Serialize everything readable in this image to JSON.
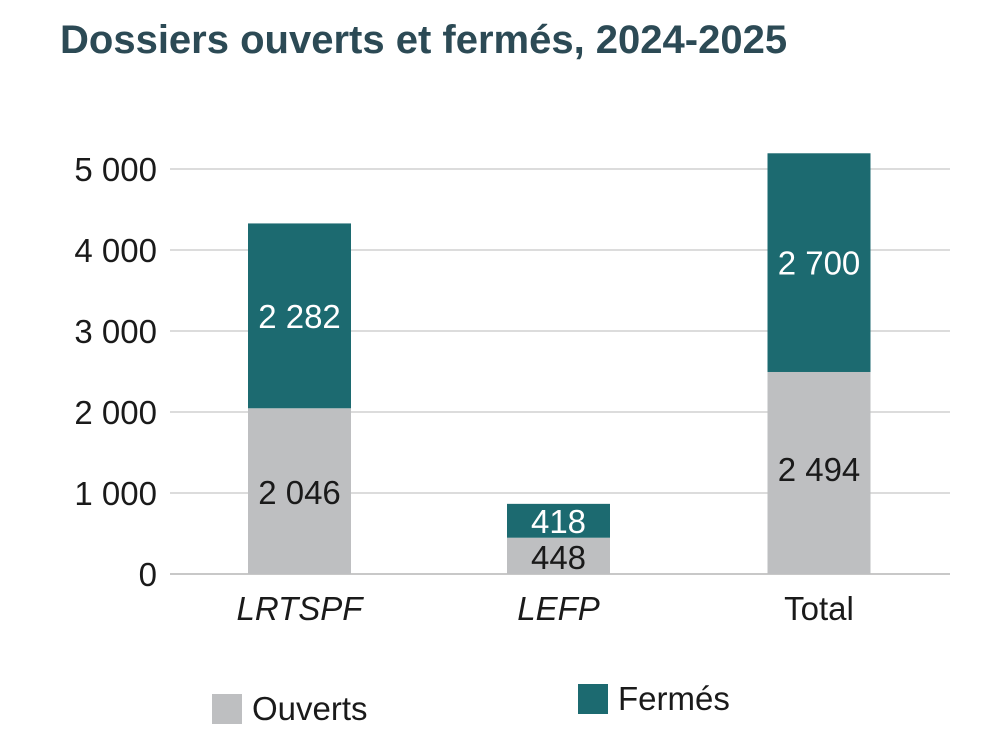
{
  "chart_data": {
    "type": "bar",
    "stacked": true,
    "title": "Dossiers ouverts et fermés, 2024-2025",
    "categories": [
      "LRTSPF",
      "LEFP",
      "Total"
    ],
    "categories_italic": [
      true,
      true,
      false
    ],
    "series": [
      {
        "name": "Ouverts",
        "values": [
          2046,
          448,
          2494
        ],
        "color": "#bebfc1",
        "label_color": "#1a1a1a"
      },
      {
        "name": "Fermés",
        "values": [
          2282,
          418,
          2700
        ],
        "color": "#1c6a70",
        "label_color": "#ffffff"
      }
    ],
    "data_labels": [
      [
        "2 046",
        "448",
        "2 494"
      ],
      [
        "2 282",
        "418",
        "2 700"
      ]
    ],
    "yticks": [
      "0",
      "1 000",
      "2 000",
      "3 000",
      "4 000",
      "5 000"
    ],
    "ylim": [
      0,
      5000
    ],
    "grid": true,
    "legend_position": "bottom"
  }
}
